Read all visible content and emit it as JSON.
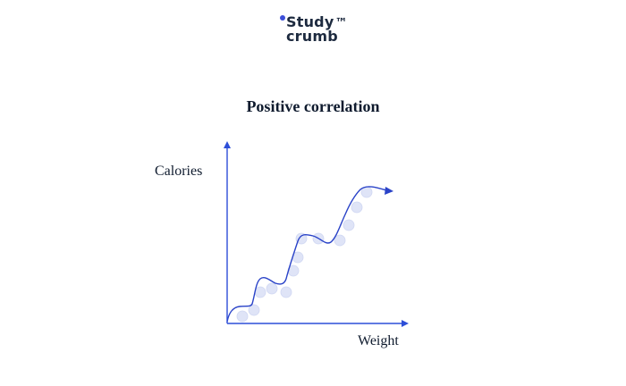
{
  "logo": {
    "line1": "Study",
    "trademark": "™",
    "line2": "crumb"
  },
  "colors": {
    "logo_text": "#1d2a3f",
    "logo_dot": "#3d4fd8",
    "axis": "#2d4ed8",
    "curve": "#2a43c8",
    "point_fill": "#dfe4f7",
    "point_stroke": "#cfd6f2",
    "text": "#0f1b2e"
  },
  "diagram": {
    "title": "Positive correlation",
    "x_axis_label": "Weight",
    "y_axis_label": "Calories"
  }
}
